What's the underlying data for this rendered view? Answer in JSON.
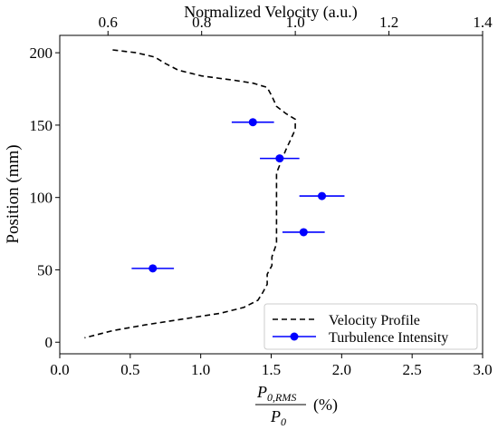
{
  "chart_data": {
    "type": "line",
    "title": "",
    "xlabel": "P_{0,RMS} / P_0 (%)",
    "xlabel_parts": {
      "numerator": "P",
      "numerator_sub": "0,RMS",
      "denominator": "P",
      "denominator_sub": "0",
      "unit": "(%)"
    },
    "ylabel": "Position (mm)",
    "top_xlabel": "Normalized Velocity (a.u.)",
    "xlim": [
      0.0,
      3.0
    ],
    "ylim": [
      -8,
      212
    ],
    "top_xlim": [
      0.497,
      1.4
    ],
    "x_ticks": [
      0.0,
      0.5,
      1.0,
      1.5,
      2.0,
      2.5,
      3.0
    ],
    "x_tick_labels": [
      "0.0",
      "0.5",
      "1.0",
      "1.5",
      "2.0",
      "2.5",
      "3.0"
    ],
    "y_ticks": [
      0,
      50,
      100,
      150,
      200
    ],
    "y_tick_labels": [
      "0",
      "50",
      "100",
      "150",
      "200"
    ],
    "top_ticks": [
      0.6,
      0.8,
      1.0,
      1.2,
      1.4
    ],
    "top_tick_labels": [
      "0.6",
      "0.8",
      "1.0",
      "1.2",
      "1.4"
    ],
    "grid": false,
    "legend_position": "bottom-right",
    "series": [
      {
        "name": "Velocity Profile",
        "axis": "top",
        "style": "dashed",
        "color": "#000000",
        "points": [
          [
            0.61,
            202
          ],
          [
            0.66,
            200
          ],
          [
            0.7,
            197
          ],
          [
            0.72,
            193
          ],
          [
            0.75,
            188
          ],
          [
            0.8,
            184
          ],
          [
            0.87,
            181
          ],
          [
            0.91,
            179
          ],
          [
            0.94,
            176
          ],
          [
            0.95,
            170
          ],
          [
            0.96,
            163
          ],
          [
            0.98,
            158
          ],
          [
            1.0,
            154
          ],
          [
            1.0,
            147
          ],
          [
            0.99,
            140
          ],
          [
            0.98,
            133
          ],
          [
            0.97,
            125
          ],
          [
            0.96,
            117
          ],
          [
            0.96,
            108
          ],
          [
            0.96,
            98
          ],
          [
            0.96,
            88
          ],
          [
            0.96,
            78
          ],
          [
            0.96,
            68
          ],
          [
            0.95,
            59
          ],
          [
            0.95,
            53
          ],
          [
            0.94,
            47
          ],
          [
            0.94,
            40
          ],
          [
            0.93,
            34
          ],
          [
            0.92,
            29
          ],
          [
            0.89,
            24
          ],
          [
            0.84,
            20
          ],
          [
            0.76,
            16
          ],
          [
            0.68,
            12
          ],
          [
            0.61,
            8
          ],
          [
            0.55,
            3
          ]
        ]
      },
      {
        "name": "Turbulence Intensity",
        "axis": "bottom",
        "style": "markers-errorbars",
        "color": "#0000ff",
        "points": [
          {
            "x": 1.37,
            "y": 152,
            "xerr": 0.15
          },
          {
            "x": 1.56,
            "y": 127,
            "xerr": 0.14
          },
          {
            "x": 1.86,
            "y": 101,
            "xerr": 0.16
          },
          {
            "x": 1.73,
            "y": 76,
            "xerr": 0.15
          },
          {
            "x": 0.66,
            "y": 51,
            "xerr": 0.15
          }
        ]
      }
    ]
  }
}
